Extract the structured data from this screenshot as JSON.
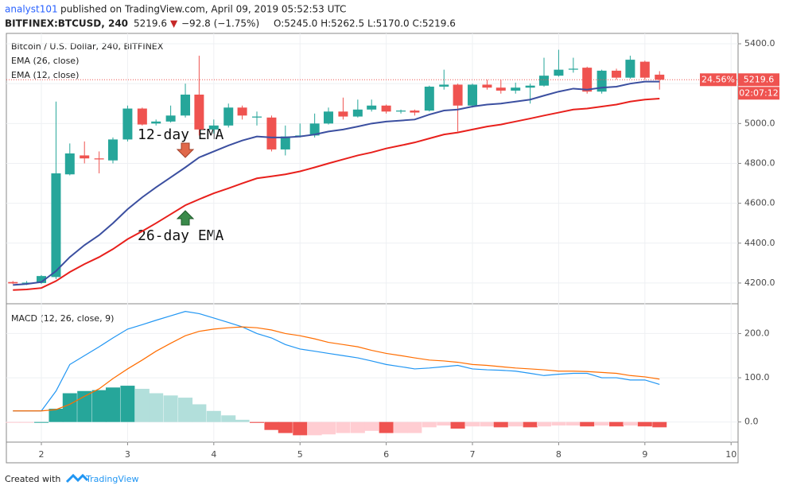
{
  "header": {
    "author": "analyst101",
    "published": "published on TradingView.com, April 09, 2019 05:52:53 UTC",
    "symbol": "BITFINEX:BTCUSD, 240",
    "last": "5219.6",
    "arrow": "▼",
    "change": "−92.8 (−1.75%)",
    "ohlc": "O:5245.0 H:5262.5 L:5170.0 C:5219.6"
  },
  "price_tags": [
    "24.56%",
    "02:07:12"
  ],
  "footer": {
    "created": "Created with",
    "brand": "TradingView"
  },
  "chart_data": [
    {
      "type": "candlestick",
      "title": "Bitcoin / U.S. Dollar, 240, BITFINEX",
      "up_color": "#26a69a",
      "down_color": "#ef5350",
      "x": [
        1.67,
        1.83,
        2.0,
        2.17,
        2.33,
        2.5,
        2.67,
        2.83,
        3.0,
        3.17,
        3.33,
        3.5,
        3.67,
        3.83,
        4.0,
        4.17,
        4.33,
        4.5,
        4.67,
        4.83,
        5.0,
        5.17,
        5.33,
        5.5,
        5.67,
        5.83,
        6.0,
        6.17,
        6.33,
        6.5,
        6.67,
        6.83,
        7.0,
        7.17,
        7.33,
        7.5,
        7.67,
        7.83,
        8.0,
        8.17,
        8.33,
        8.5,
        8.67,
        8.83,
        9.0,
        9.17
      ],
      "open": [
        4205,
        4198,
        4200,
        4230,
        4745,
        4840,
        4825,
        4815,
        4920,
        5075,
        5000,
        5010,
        5040,
        5145,
        4970,
        4990,
        5080,
        5030,
        5030,
        4870,
        4935,
        4940,
        5000,
        5060,
        5035,
        5070,
        5090,
        5060,
        5065,
        5065,
        5185,
        5195,
        5090,
        5195,
        5180,
        5165,
        5180,
        5190,
        5240,
        5270,
        5280,
        5160,
        5265,
        5230,
        5310,
        5245
      ],
      "high": [
        4210,
        4210,
        4240,
        5110,
        4900,
        4910,
        4860,
        4930,
        5090,
        5080,
        5020,
        5090,
        5200,
        5340,
        5020,
        5100,
        5090,
        5060,
        5040,
        4990,
        5000,
        5050,
        5080,
        5130,
        5120,
        5120,
        5095,
        5070,
        5070,
        5190,
        5270,
        5200,
        5200,
        5220,
        5220,
        5205,
        5200,
        5330,
        5370,
        5330,
        5285,
        5270,
        5275,
        5340,
        5315,
        5262.5
      ],
      "low": [
        4195,
        4190,
        4195,
        4220,
        4740,
        4800,
        4750,
        4800,
        4910,
        4990,
        4990,
        5005,
        5030,
        4940,
        4950,
        4980,
        5020,
        4990,
        4860,
        4840,
        4930,
        4930,
        4995,
        5020,
        5030,
        5060,
        5050,
        5050,
        5040,
        5060,
        5170,
        4960,
        5080,
        5170,
        5150,
        5150,
        5100,
        5185,
        5235,
        5255,
        5150,
        5150,
        5220,
        5225,
        5220,
        5170
      ],
      "close": [
        4198,
        4202,
        4235,
        4750,
        4850,
        4825,
        4820,
        4920,
        5075,
        4995,
        5010,
        5040,
        5145,
        4970,
        4990,
        5080,
        5040,
        5035,
        4870,
        4935,
        4940,
        5000,
        5060,
        5035,
        5070,
        5090,
        5060,
        5065,
        5055,
        5185,
        5195,
        5090,
        5195,
        5180,
        5165,
        5180,
        5190,
        5240,
        5270,
        5275,
        5160,
        5265,
        5230,
        5320,
        5230,
        5219.6
      ],
      "series": [
        {
          "name": "EMA (26, close)",
          "color": "#e8201c",
          "values": [
            4165,
            4168,
            4175,
            4210,
            4255,
            4295,
            4330,
            4370,
            4420,
            4460,
            4500,
            4545,
            4590,
            4620,
            4650,
            4675,
            4700,
            4725,
            4735,
            4745,
            4760,
            4780,
            4800,
            4820,
            4840,
            4855,
            4875,
            4890,
            4905,
            4925,
            4945,
            4955,
            4970,
            4985,
            4995,
            5010,
            5025,
            5040,
            5055,
            5070,
            5075,
            5085,
            5095,
            5110,
            5120,
            5125
          ]
        },
        {
          "name": "EMA (12, close)",
          "color": "#3b4fa0",
          "values": [
            4190,
            4195,
            4205,
            4260,
            4330,
            4390,
            4440,
            4500,
            4570,
            4630,
            4680,
            4730,
            4780,
            4830,
            4860,
            4890,
            4915,
            4935,
            4930,
            4930,
            4935,
            4945,
            4960,
            4970,
            4985,
            5000,
            5010,
            5015,
            5020,
            5045,
            5065,
            5070,
            5085,
            5095,
            5100,
            5110,
            5120,
            5140,
            5160,
            5175,
            5170,
            5180,
            5185,
            5200,
            5210,
            5210
          ]
        }
      ],
      "annotations": [
        "12-day EMA",
        "26-day EMA"
      ],
      "xlim": [
        1.594,
        10.081
      ],
      "ylim": [
        4096,
        5452
      ],
      "yticks": [
        {
          "value": 4200,
          "label": "4200.0"
        },
        {
          "value": 4400,
          "label": "4400.0"
        },
        {
          "value": 4600,
          "label": "4600.0"
        },
        {
          "value": 4800,
          "label": "4800.0"
        },
        {
          "value": 5000,
          "label": "5000.0"
        },
        {
          "value": 5200,
          "label": "5200.0"
        },
        {
          "value": 5400,
          "label": "5400.0"
        }
      ],
      "grid": true
    },
    {
      "type": "macd",
      "title": "MACD (12, 26, close, 9)",
      "x": [
        1.67,
        1.83,
        2.0,
        2.17,
        2.33,
        2.5,
        2.67,
        2.83,
        3.0,
        3.17,
        3.33,
        3.5,
        3.67,
        3.83,
        4.0,
        4.17,
        4.33,
        4.5,
        4.67,
        4.83,
        5.0,
        5.17,
        5.33,
        5.5,
        5.67,
        5.83,
        6.0,
        6.17,
        6.33,
        6.5,
        6.67,
        6.83,
        7.0,
        7.17,
        7.33,
        7.5,
        7.67,
        7.83,
        8.0,
        8.17,
        8.33,
        8.5,
        8.67,
        8.83,
        9.0,
        9.17
      ],
      "histogram": [
        -1,
        -1,
        0,
        30,
        65,
        70,
        72,
        78,
        82,
        75,
        65,
        60,
        55,
        40,
        25,
        15,
        5,
        -2,
        -18,
        -25,
        -30,
        -30,
        -28,
        -25,
        -25,
        -20,
        -25,
        -25,
        -25,
        -12,
        -8,
        -15,
        -10,
        -10,
        -12,
        -10,
        -12,
        -10,
        -8,
        -8,
        -10,
        -8,
        -10,
        -8,
        -10,
        -12
      ],
      "histogram_colors": {
        "grow_above": "#26a69a",
        "fall_above": "#b2dfdb",
        "grow_below": "#ffcdd2",
        "fall_below": "#ef5350"
      },
      "series": [
        {
          "color": "#2196f3",
          "values": [
            25,
            25,
            25,
            70,
            130,
            150,
            170,
            190,
            210,
            220,
            230,
            240,
            250,
            245,
            235,
            225,
            215,
            200,
            190,
            175,
            165,
            160,
            155,
            150,
            145,
            138,
            130,
            125,
            120,
            122,
            125,
            128,
            120,
            118,
            117,
            115,
            110,
            105,
            108,
            110,
            110,
            100,
            100,
            95,
            95,
            85
          ]
        },
        {
          "color": "#ff6d00",
          "values": [
            25,
            25,
            25,
            28,
            40,
            58,
            75,
            98,
            120,
            140,
            160,
            178,
            195,
            205,
            210,
            213,
            215,
            213,
            208,
            200,
            195,
            188,
            180,
            175,
            170,
            162,
            155,
            150,
            145,
            140,
            138,
            135,
            130,
            128,
            125,
            122,
            120,
            118,
            115,
            115,
            114,
            112,
            110,
            105,
            102,
            97
          ]
        }
      ],
      "xlim": [
        1.594,
        10.081
      ],
      "ylim": [
        -45.5,
        267.3
      ],
      "yticks": [
        {
          "value": 0,
          "label": "0.0"
        },
        {
          "value": 100,
          "label": "100.0"
        },
        {
          "value": 200,
          "label": "200.0"
        }
      ],
      "xticks": [
        2,
        3,
        4,
        5,
        6,
        7,
        8,
        9,
        10
      ],
      "grid": true
    }
  ]
}
